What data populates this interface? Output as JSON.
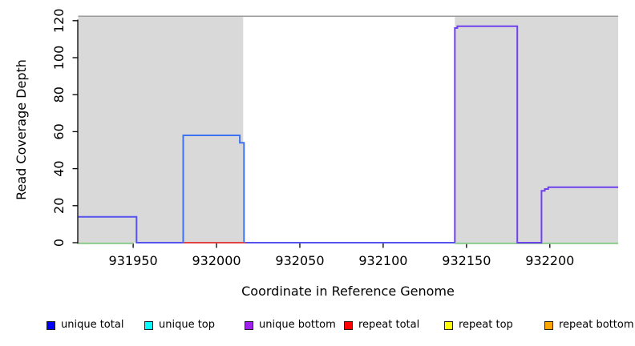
{
  "chart_data": {
    "type": "line",
    "subtype": "step-coverage",
    "title": "",
    "xlabel": "Coordinate in Reference Genome",
    "ylabel": "Read Coverage Depth",
    "xlim": [
      931917,
      932241
    ],
    "ylim": [
      0,
      122
    ],
    "grid": false,
    "x_ticks": [
      931950,
      932000,
      932050,
      932100,
      932150,
      932200
    ],
    "y_ticks": [
      0,
      20,
      40,
      60,
      80,
      100,
      120
    ],
    "repeat_regions": [
      [
        931917,
        932016
      ],
      [
        932143,
        932241
      ]
    ],
    "series_segments": [
      {
        "name": "baseline-green-left",
        "color_key": "green",
        "points": [
          [
            931917,
            0
          ],
          [
            931950,
            0
          ]
        ]
      },
      {
        "name": "baseline-green-right",
        "color_key": "green",
        "points": [
          [
            932143,
            0
          ],
          [
            932241,
            0
          ]
        ]
      },
      {
        "name": "step-14",
        "color_key": "blueviolet",
        "points": [
          [
            931917,
            14
          ],
          [
            931952,
            14
          ],
          [
            931952,
            0
          ],
          [
            931980,
            0
          ]
        ]
      },
      {
        "name": "baseline-mid-zero",
        "color_key": "blueviolet",
        "points": [
          [
            932016.5,
            0
          ],
          [
            932143,
            0
          ]
        ]
      },
      {
        "name": "baseline-red",
        "color_key": "red",
        "points": [
          [
            931980,
            0
          ],
          [
            932017.6,
            0
          ]
        ]
      },
      {
        "name": "box-58",
        "color_key": "blue",
        "points": [
          [
            931980,
            0
          ],
          [
            931980,
            58
          ],
          [
            932014,
            58
          ],
          [
            932014,
            54
          ],
          [
            932016.5,
            54
          ],
          [
            932016.5,
            0
          ]
        ]
      },
      {
        "name": "box-117-and-step-30",
        "color_key": "purple",
        "points": [
          [
            932143,
            0
          ],
          [
            932143,
            116
          ],
          [
            932144.5,
            116
          ],
          [
            932144.5,
            117
          ],
          [
            932180.5,
            117
          ],
          [
            932180.5,
            0
          ],
          [
            932195,
            0
          ],
          [
            932195,
            28
          ],
          [
            932197,
            28
          ],
          [
            932197,
            29
          ],
          [
            932199,
            29
          ],
          [
            932199,
            30
          ],
          [
            932241,
            30
          ]
        ]
      }
    ],
    "line_colors": {
      "green": "#8CCB8C",
      "blue": "#3D73F2",
      "purple": "#7040EE",
      "blueviolet": "#5552EE",
      "red": "#E34242"
    },
    "repeat_region_color": "#D9D9D9",
    "plot_border_color": "#9B9B9B",
    "axis_color": "#000000",
    "legend": [
      {
        "label": "unique total",
        "color": "#0000FF"
      },
      {
        "label": "unique top",
        "color": "#00FFFF"
      },
      {
        "label": "unique bottom",
        "color": "#A020F0"
      },
      {
        "label": "repeat total",
        "color": "#FF0000"
      },
      {
        "label": "repeat top",
        "color": "#FFFF00"
      },
      {
        "label": "repeat bottom",
        "color": "#FFA500"
      }
    ]
  }
}
